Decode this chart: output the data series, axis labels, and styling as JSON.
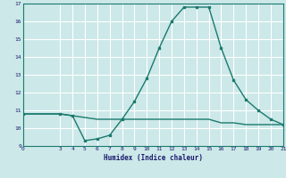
{
  "title": "",
  "xlabel": "Humidex (Indice chaleur)",
  "ylabel": "",
  "background_color": "#cce8e8",
  "grid_color": "#ffffff",
  "line_color": "#1a7a6e",
  "xlim": [
    0,
    21
  ],
  "ylim": [
    9,
    17
  ],
  "xticks": [
    0,
    3,
    4,
    5,
    6,
    7,
    8,
    9,
    10,
    11,
    12,
    13,
    14,
    15,
    16,
    17,
    18,
    19,
    20,
    21
  ],
  "yticks": [
    9,
    10,
    11,
    12,
    13,
    14,
    15,
    16,
    17
  ],
  "line1_x": [
    0,
    3,
    4,
    5,
    6,
    7,
    8,
    9,
    10,
    11,
    12,
    13,
    14,
    15,
    16,
    17,
    18,
    19,
    20,
    21
  ],
  "line1_y": [
    10.8,
    10.8,
    10.7,
    10.6,
    10.5,
    10.5,
    10.5,
    10.5,
    10.5,
    10.5,
    10.5,
    10.5,
    10.5,
    10.5,
    10.3,
    10.3,
    10.2,
    10.2,
    10.2,
    10.2
  ],
  "line2_x": [
    0,
    3,
    4,
    5,
    6,
    7,
    8,
    9,
    10,
    11,
    12,
    13,
    14,
    15,
    16,
    17,
    18,
    19,
    20,
    21
  ],
  "line2_y": [
    10.8,
    10.8,
    10.7,
    9.3,
    9.4,
    9.6,
    10.5,
    11.5,
    12.8,
    14.5,
    16.0,
    16.8,
    16.8,
    16.8,
    14.5,
    12.7,
    11.6,
    11.0,
    10.5,
    10.2
  ]
}
